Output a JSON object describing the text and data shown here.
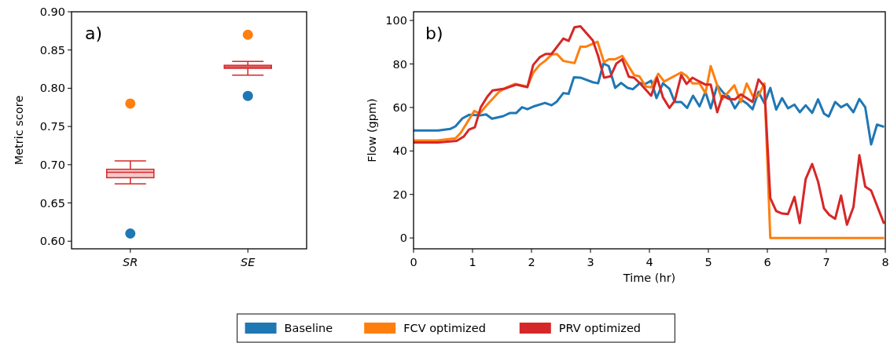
{
  "chart_data": [
    {
      "type": "box",
      "ylabel": "Metric score",
      "categories": [
        "SR",
        "SE"
      ],
      "ylim": [
        0.59,
        0.9
      ],
      "yticks": [
        {
          "value": 0.6,
          "label": "0.60"
        },
        {
          "value": 0.65,
          "label": "0.65"
        },
        {
          "value": 0.7,
          "label": "0.70"
        },
        {
          "value": 0.75,
          "label": "0.75"
        },
        {
          "value": 0.8,
          "label": "0.80"
        },
        {
          "value": 0.85,
          "label": "0.85"
        },
        {
          "value": 0.9,
          "label": "0.90"
        }
      ],
      "annotations": [
        "a)"
      ],
      "marker": "circle",
      "series": [
        {
          "type": "box",
          "color": "#d62728",
          "boxes": [
            {
              "low": 0.675,
              "q1": 0.683,
              "median": 0.69,
              "q3": 0.694,
              "high": 0.705
            },
            {
              "low": 0.817,
              "q1": 0.826,
              "median": 0.828,
              "q3": 0.83,
              "high": 0.835
            }
          ]
        },
        {
          "type": "scatter",
          "color": "#1f77b4",
          "values": [
            0.61,
            0.79
          ]
        },
        {
          "type": "scatter",
          "color": "#ff7f0e",
          "values": [
            0.78,
            0.87
          ]
        }
      ]
    },
    {
      "type": "line",
      "xlabel": "Time (hr)",
      "ylabel": "Flow (gpm)",
      "xlim": [
        0,
        8
      ],
      "xticks": [
        0,
        1,
        2,
        3,
        4,
        5,
        6,
        7,
        8
      ],
      "ylim": [
        -5,
        104
      ],
      "yticks": [
        0,
        20,
        40,
        60,
        80,
        100
      ],
      "annotations": [
        "b)"
      ],
      "legend": "bottom",
      "line_style": "solid",
      "series": [
        {
          "name": "Baseline",
          "color": "#1f77b4",
          "x": [
            0,
            0.42,
            0.62,
            0.71,
            0.83,
            0.94,
            1.14,
            1.23,
            1.33,
            1.52,
            1.63,
            1.74,
            1.84,
            1.93,
            2.03,
            2.23,
            2.34,
            2.43,
            2.54,
            2.63,
            2.72,
            2.83,
            3.04,
            3.13,
            3.22,
            3.31,
            3.42,
            3.52,
            3.63,
            3.72,
            3.84,
            3.93,
            4.03,
            4.12,
            4.23,
            4.34,
            4.43,
            4.54,
            4.64,
            4.74,
            4.85,
            4.95,
            5.04,
            5.15,
            5.26,
            5.35,
            5.45,
            5.55,
            5.65,
            5.75,
            5.85,
            5.95,
            6.05,
            6.15,
            6.25,
            6.35,
            6.46,
            6.55,
            6.65,
            6.76,
            6.86,
            6.96,
            7.04,
            7.15,
            7.25,
            7.35,
            7.46,
            7.56,
            7.66,
            7.76,
            7.86,
            7.98
          ],
          "values": [
            49.4,
            49.4,
            50.1,
            51.3,
            55,
            56.6,
            56.4,
            56.8,
            54.8,
            56,
            57.4,
            57.4,
            60.1,
            59.2,
            60.4,
            62.1,
            61,
            62.7,
            66.6,
            66.3,
            73.9,
            73.7,
            71.6,
            71.1,
            80.2,
            79,
            69,
            71.3,
            69,
            68.4,
            71.3,
            70.8,
            72.3,
            64.3,
            71.1,
            68.6,
            62.5,
            62.5,
            59.8,
            65.4,
            60.5,
            67.2,
            59.6,
            70.2,
            66.6,
            64.9,
            59.6,
            63.7,
            61.9,
            59.2,
            67.2,
            61.9,
            69,
            59,
            64.3,
            59.6,
            61.3,
            57.8,
            61,
            57.5,
            63.7,
            57.2,
            55.8,
            62.5,
            60.1,
            61.6,
            57.8,
            63.9,
            60.1,
            43,
            52.1,
            51.1
          ]
        },
        {
          "name": "FCV optimized",
          "color": "#ff7f0e",
          "x": [
            0,
            0.4,
            0.71,
            0.8,
            1.03,
            1.12,
            1.25,
            1.45,
            1.56,
            1.72,
            1.93,
            2.03,
            2.14,
            2.23,
            2.34,
            2.43,
            2.54,
            2.73,
            2.83,
            2.92,
            3.12,
            3.23,
            3.31,
            3.42,
            3.54,
            3.74,
            3.83,
            3.94,
            4.03,
            4.15,
            4.25,
            4.54,
            4.63,
            4.73,
            4.85,
            4.95,
            5.04,
            5.23,
            5.44,
            5.55,
            5.65,
            5.75,
            5.85,
            5.95,
            6.05,
            7.98
          ],
          "values": [
            44.8,
            44.8,
            45.8,
            48.3,
            58.4,
            57.2,
            61.3,
            67.2,
            69,
            70.8,
            69.6,
            76,
            79.6,
            81.4,
            84.3,
            84.6,
            81.4,
            80.4,
            87.9,
            87.9,
            90.2,
            80.8,
            82.2,
            82.2,
            83.7,
            74.9,
            74.3,
            69.6,
            69.3,
            75.5,
            71.9,
            76.1,
            74.5,
            71.1,
            71.1,
            66.6,
            79,
            63.7,
            70.2,
            62.5,
            71,
            65.4,
            65.4,
            71,
            0,
            0
          ]
        },
        {
          "name": "PRV optimized",
          "color": "#d62728",
          "x": [
            0,
            0.42,
            0.73,
            0.85,
            0.94,
            1.04,
            1.14,
            1.25,
            1.34,
            1.54,
            1.74,
            1.93,
            2.03,
            2.14,
            2.24,
            2.34,
            2.54,
            2.63,
            2.73,
            2.83,
            3.04,
            3.13,
            3.23,
            3.34,
            3.44,
            3.54,
            3.65,
            3.74,
            3.85,
            3.95,
            4.03,
            4.13,
            4.23,
            4.34,
            4.43,
            4.54,
            4.63,
            4.73,
            4.85,
            4.95,
            5.04,
            5.15,
            5.24,
            5.35,
            5.45,
            5.55,
            5.65,
            5.75,
            5.85,
            5.95,
            6.05,
            6.15,
            6.25,
            6.35,
            6.46,
            6.55,
            6.65,
            6.76,
            6.86,
            6.96,
            7.05,
            7.15,
            7.25,
            7.35,
            7.46,
            7.56,
            7.66,
            7.76,
            7.98
          ],
          "values": [
            43.9,
            43.9,
            44.6,
            46.6,
            49.8,
            50.9,
            60.1,
            64.9,
            67.8,
            68.6,
            70.5,
            69.3,
            79.6,
            83.1,
            84.6,
            84.6,
            91.7,
            90.6,
            96.9,
            97.3,
            90.8,
            83.7,
            73.7,
            74.3,
            80.2,
            82.2,
            74.1,
            73.7,
            70.8,
            67.8,
            65.4,
            73.7,
            64.6,
            59.8,
            63.1,
            74.9,
            70.8,
            73.7,
            71.9,
            70.5,
            70.5,
            57.8,
            65.4,
            63.9,
            63.7,
            66,
            64.3,
            62.5,
            72.9,
            69.6,
            18.3,
            12.4,
            11.2,
            11,
            18.9,
            6.8,
            27.1,
            34,
            25.9,
            13.6,
            10.6,
            8.8,
            19.5,
            6.1,
            14.2,
            38,
            23.6,
            21.8,
            6.5
          ]
        }
      ]
    }
  ]
}
